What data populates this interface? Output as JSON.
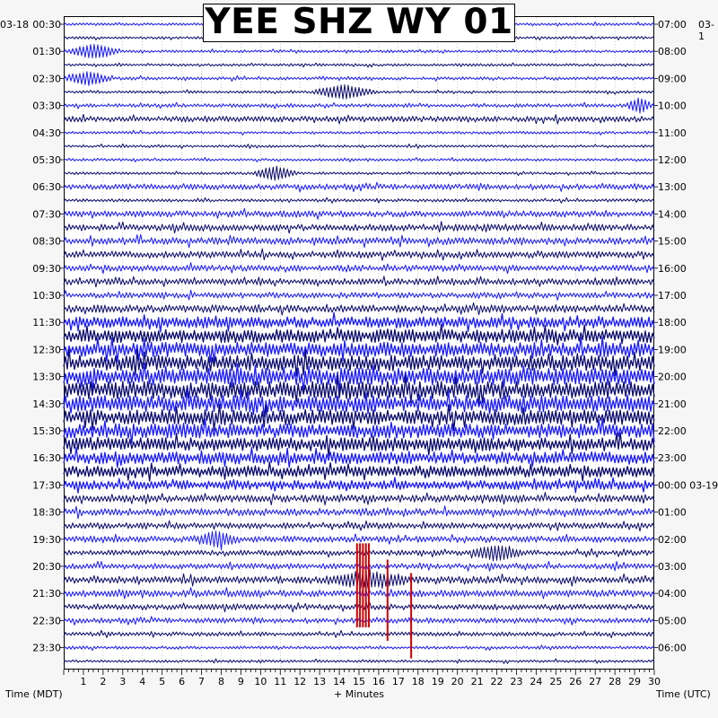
{
  "title": "YEE SHZ WY 01",
  "left_date": "03-18",
  "right_date": "03-1",
  "x_label": "+ Minutes",
  "left_axis_label": "Time (MDT)",
  "right_axis_label": "Time (UTC)",
  "colors": {
    "trace_dark": "#0a0a6e",
    "trace_blue": "#1a1aff",
    "marker": "#d00000",
    "grid": "#9a9a9a"
  },
  "chart_data": {
    "type": "line",
    "title": "YEE SHZ WY 01",
    "xlabel": "+ Minutes",
    "xlim": [
      0,
      30
    ],
    "x_ticks": [
      1,
      2,
      3,
      4,
      5,
      6,
      7,
      8,
      9,
      10,
      11,
      12,
      13,
      14,
      15,
      16,
      17,
      18,
      19,
      20,
      21,
      22,
      23,
      24,
      25,
      26,
      27,
      28,
      29,
      30
    ],
    "left_ticks": [
      "00:30",
      "01:30",
      "02:30",
      "03:30",
      "04:30",
      "05:30",
      "06:30",
      "07:30",
      "08:30",
      "09:30",
      "10:30",
      "11:30",
      "12:30",
      "13:30",
      "14:30",
      "15:30",
      "16:30",
      "17:30",
      "18:30",
      "19:30",
      "20:30",
      "21:30",
      "22:30",
      "23:30"
    ],
    "right_ticks": [
      "07:00",
      "08:00",
      "09:00",
      "10:00",
      "11:00",
      "12:00",
      "13:00",
      "14:00",
      "15:00",
      "16:00",
      "17:00",
      "18:00",
      "19:00",
      "20:00",
      "21:00",
      "22:00",
      "23:00",
      "00:00 03-19",
      "01:00",
      "02:00",
      "03:00",
      "04:00",
      "05:00",
      "06:00"
    ],
    "trace_rows": 48,
    "trace_interval_minutes": 30,
    "amplitude_by_row": [
      1,
      1,
      1,
      1,
      1.2,
      1,
      1.4,
      2.2,
      1,
      1,
      1,
      1,
      2.2,
      1.2,
      2.4,
      2.6,
      2.8,
      2.6,
      2.4,
      2.4,
      2.2,
      3.0,
      4.2,
      5.0,
      5.5,
      6.0,
      6.4,
      6.6,
      6.2,
      5.8,
      5.4,
      5.0,
      4.6,
      4.2,
      3.4,
      2.8,
      2.8,
      2.4,
      2.4,
      2.0,
      2.2,
      2.8,
      2.6,
      2.2,
      2.0,
      1.6,
      1.2,
      1.0
    ],
    "events": [
      {
        "row": 2,
        "minute_start": 0,
        "minute_end": 3
      },
      {
        "row": 4,
        "minute_start": 0,
        "minute_end": 2.5
      },
      {
        "row": 5,
        "minute_start": 12.5,
        "minute_end": 16
      },
      {
        "row": 6,
        "minute_start": 28.5,
        "minute_end": 30
      },
      {
        "row": 11,
        "minute_start": 9.5,
        "minute_end": 12
      },
      {
        "row": 38,
        "minute_start": 6.5,
        "minute_end": 9
      },
      {
        "row": 39,
        "minute_start": 20.5,
        "minute_end": 23.5
      },
      {
        "row": 41,
        "minute_start": 13,
        "minute_end": 18
      }
    ],
    "markers": [
      {
        "minute": 14.9,
        "row_start": 38.3,
        "row_end": 44.5
      },
      {
        "minute": 15.05,
        "row_start": 38.3,
        "row_end": 44.5
      },
      {
        "minute": 15.2,
        "row_start": 38.3,
        "row_end": 44.5
      },
      {
        "minute": 15.35,
        "row_start": 38.3,
        "row_end": 44.5
      },
      {
        "minute": 15.5,
        "row_start": 38.3,
        "row_end": 44.5
      },
      {
        "minute": 16.45,
        "row_start": 39.5,
        "row_end": 45.5
      },
      {
        "minute": 17.65,
        "row_start": 40.5,
        "row_end": 46.8
      }
    ]
  }
}
